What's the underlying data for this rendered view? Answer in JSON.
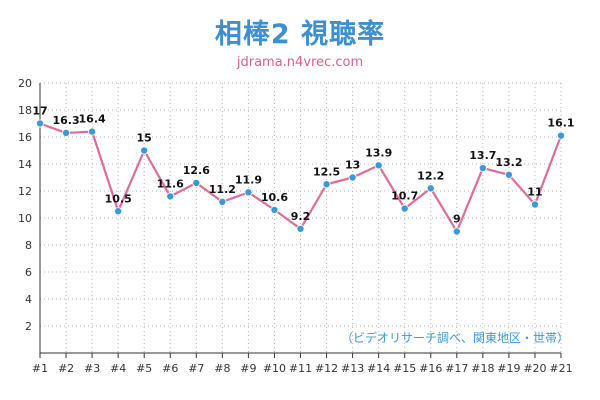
{
  "chart_data": {
    "type": "line",
    "title": "相棒2 視聴率",
    "subtitle": "jdrama.n4vrec.com",
    "note": "（ビデオリサーチ調べ、関東地区・世帯）",
    "categories": [
      "#1",
      "#2",
      "#3",
      "#4",
      "#5",
      "#6",
      "#7",
      "#8",
      "#9",
      "#10",
      "#11",
      "#12",
      "#13",
      "#14",
      "#15",
      "#16",
      "#17",
      "#18",
      "#19",
      "#20",
      "#21"
    ],
    "values": [
      17,
      16.3,
      16.4,
      10.5,
      15,
      11.6,
      12.6,
      11.2,
      11.9,
      10.6,
      9.2,
      12.5,
      13,
      13.9,
      10.7,
      12.2,
      9,
      13.7,
      13.2,
      11,
      16.1
    ],
    "value_labels": [
      "17",
      "16.3",
      "16.4",
      "10.5",
      "15",
      "11.6",
      "12.6",
      "11.2",
      "11.9",
      "10.6",
      "9.2",
      "12.5",
      "13",
      "13.9",
      "10.7",
      "12.2",
      "9",
      "13.7",
      "13.2",
      "11",
      "16.1"
    ],
    "ylim": [
      0,
      20
    ],
    "yticks": [
      2,
      4,
      6,
      8,
      10,
      12,
      14,
      16,
      18,
      20
    ],
    "grid": true,
    "line_color": "#e36a9a",
    "marker_color": "#3a9ad9"
  }
}
